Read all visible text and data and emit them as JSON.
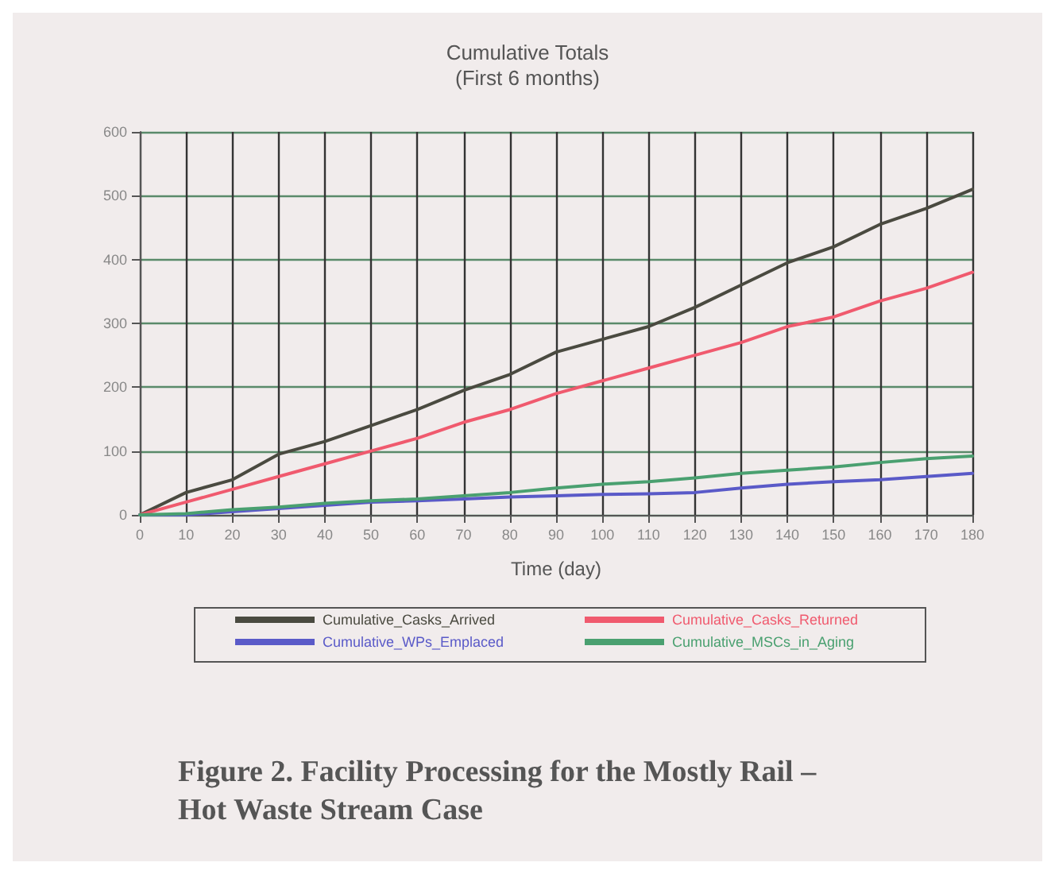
{
  "chart_data": {
    "type": "line",
    "title": "Cumulative Totals\n(First 6 months)",
    "xlabel": "Time (day)",
    "x": [
      0,
      10,
      20,
      30,
      40,
      50,
      60,
      70,
      80,
      90,
      100,
      110,
      120,
      130,
      140,
      150,
      160,
      170,
      180
    ],
    "series": [
      {
        "name": "Cumulative_Casks_Arrived",
        "color": "#4a4a40",
        "values": [
          0,
          35,
          55,
          95,
          115,
          140,
          165,
          195,
          220,
          255,
          275,
          295,
          325,
          360,
          395,
          420,
          455,
          480,
          510
        ]
      },
      {
        "name": "Cumulative_Casks_Returned",
        "color": "#f05a6e",
        "values": [
          0,
          20,
          40,
          60,
          80,
          100,
          120,
          145,
          165,
          190,
          210,
          230,
          250,
          270,
          295,
          310,
          335,
          355,
          380
        ]
      },
      {
        "name": "Cumulative_WPs_Emplaced",
        "color": "#5a5ac8",
        "values": [
          0,
          0,
          5,
          10,
          15,
          20,
          22,
          25,
          28,
          30,
          32,
          33,
          35,
          42,
          48,
          52,
          55,
          60,
          65
        ]
      },
      {
        "name": "Cumulative_MSCs_in_Aging",
        "color": "#4aa070",
        "values": [
          0,
          2,
          8,
          12,
          18,
          22,
          25,
          30,
          35,
          42,
          48,
          52,
          58,
          65,
          70,
          75,
          82,
          88,
          92
        ]
      }
    ],
    "xlim": [
      0,
      180
    ],
    "xticks": [
      0,
      10,
      20,
      30,
      40,
      50,
      60,
      70,
      80,
      90,
      100,
      110,
      120,
      130,
      140,
      150,
      160,
      170,
      180
    ],
    "ylim": [
      0,
      600
    ],
    "yticks": [
      0,
      100,
      200,
      300,
      400,
      500,
      600
    ],
    "grid": true,
    "legend": "bottom",
    "marker": "none",
    "line_style": "solid",
    "annotations": [
      "Figure 2. Facility Processing for the Mostly Rail – Hot Waste Stream Case"
    ]
  }
}
